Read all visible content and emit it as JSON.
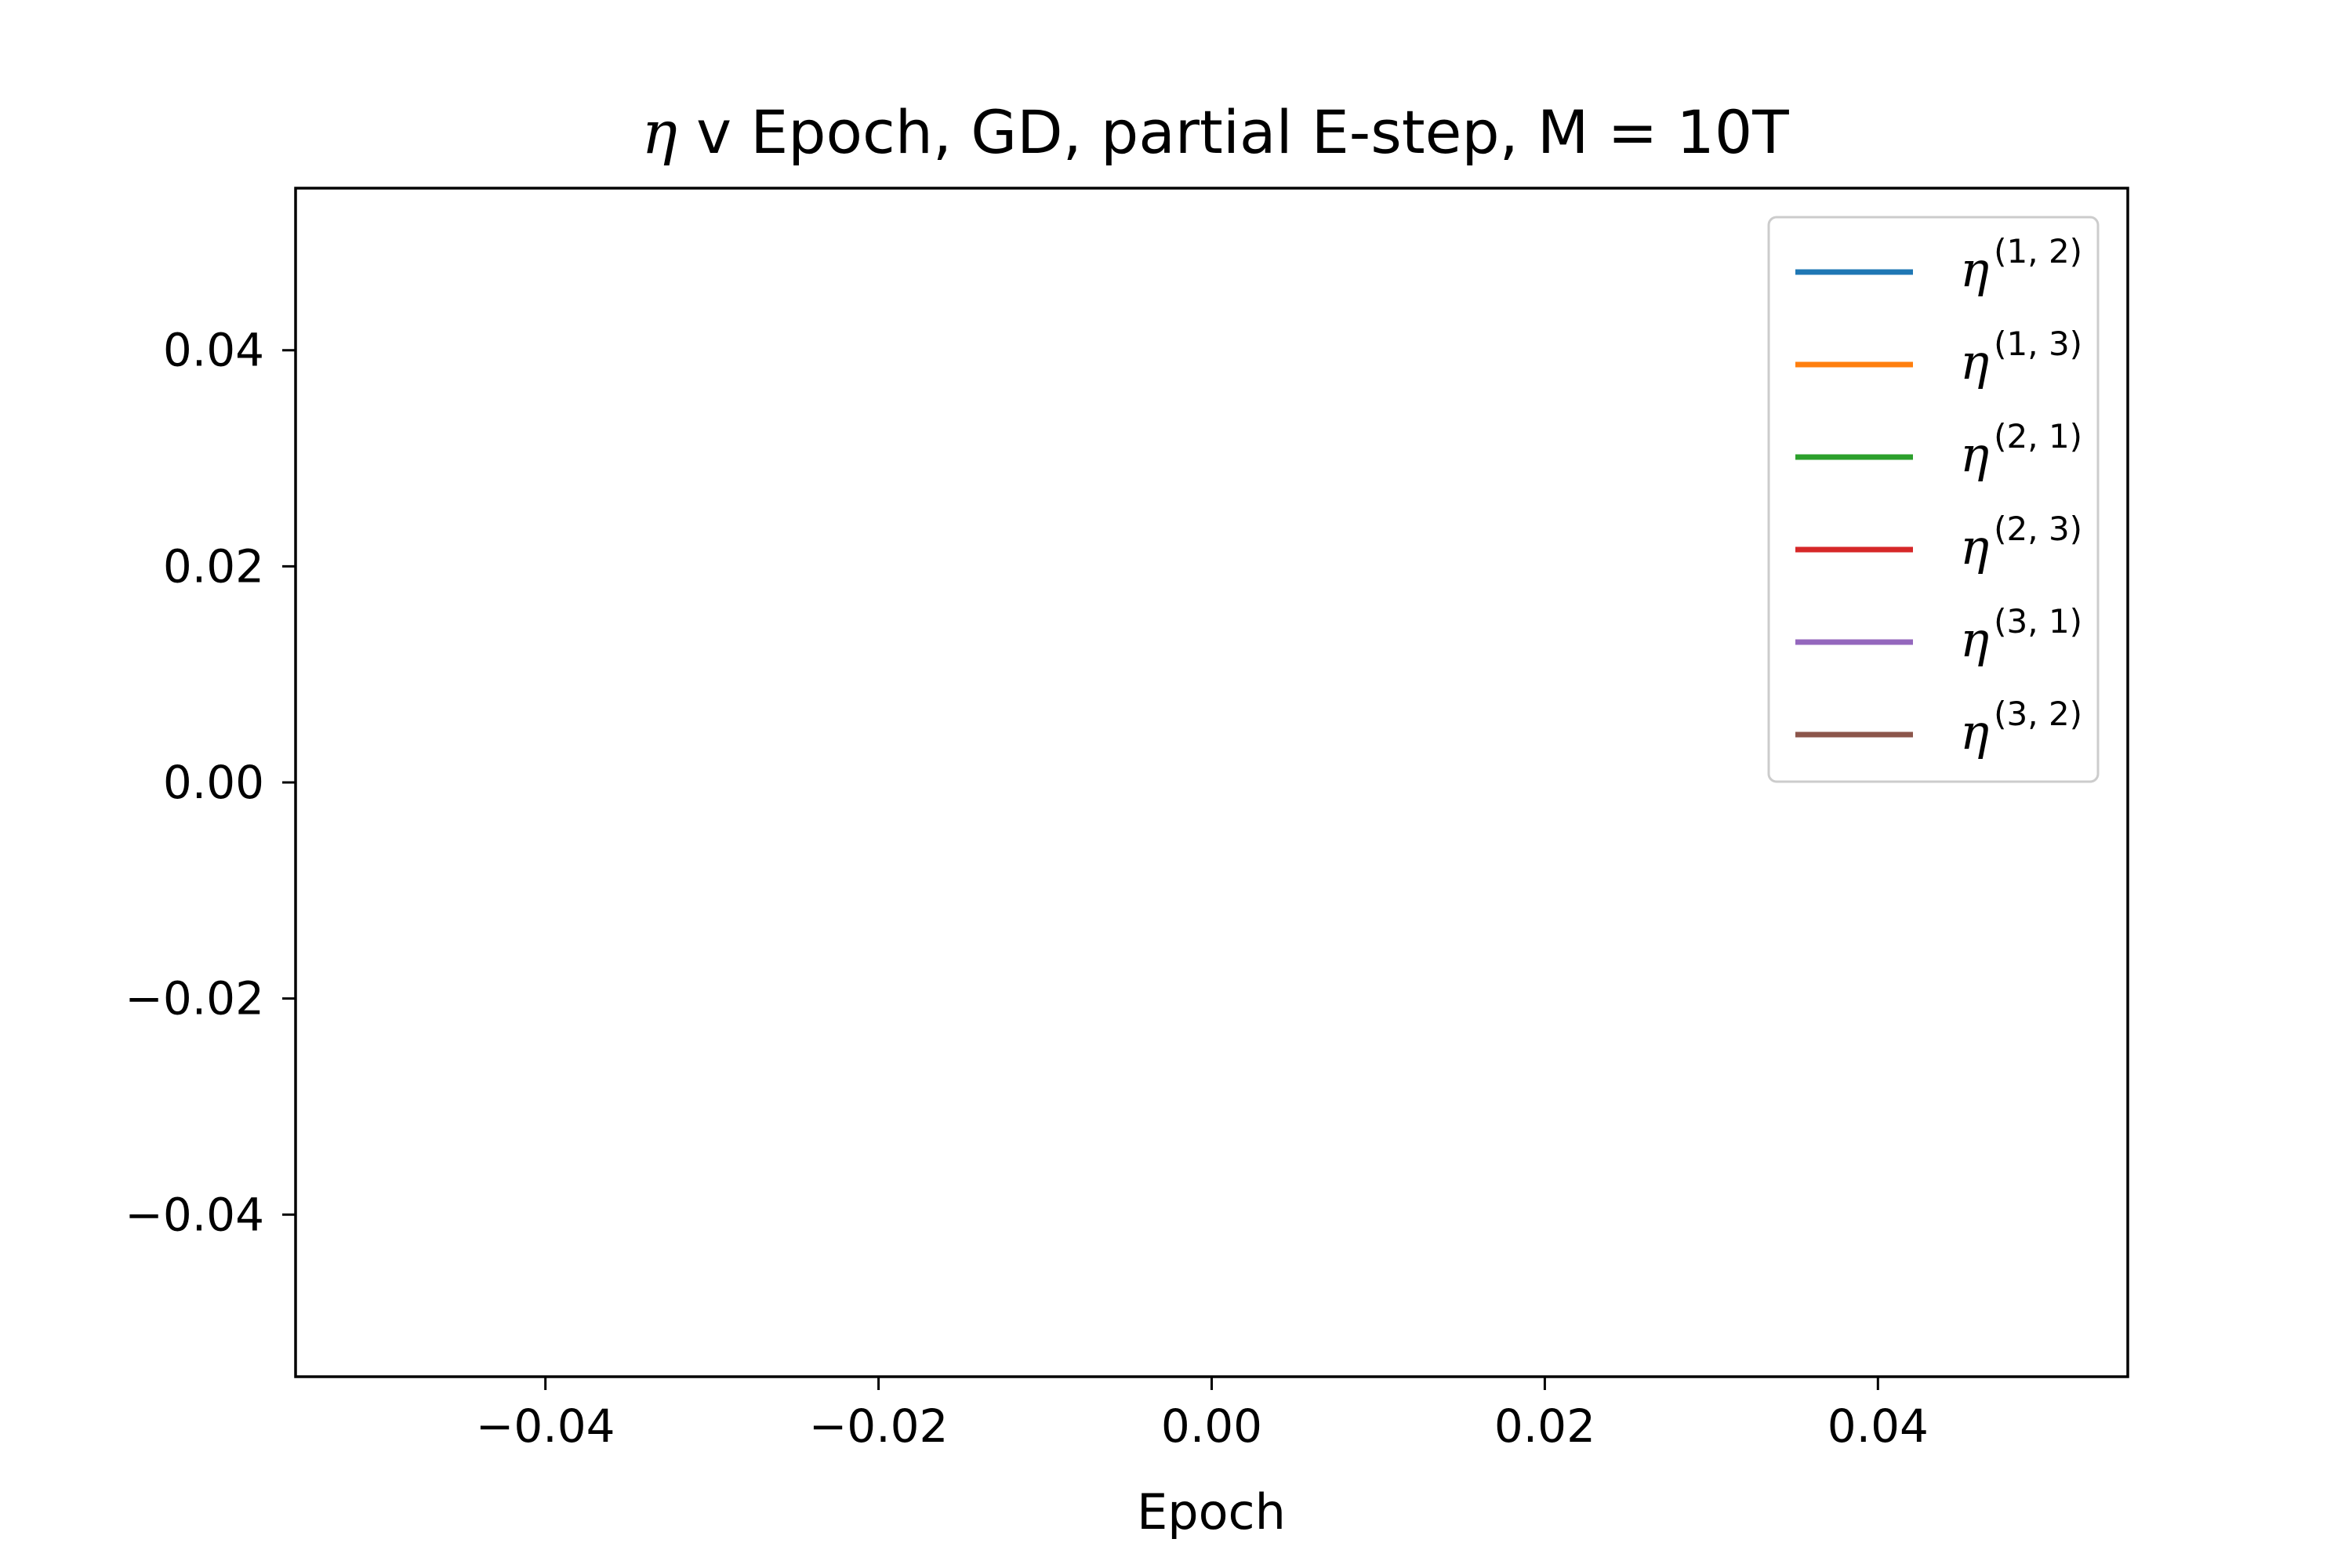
{
  "chart_data": {
    "type": "line",
    "title_symbol": "η",
    "title_rest": " v Epoch, GD, partial E-step, M = 10T",
    "xlabel": "Epoch",
    "ylabel": "",
    "xlim": [
      -0.055,
      0.055
    ],
    "ylim": [
      -0.055,
      0.055
    ],
    "xticks": [
      -0.04,
      -0.02,
      0.0,
      0.02,
      0.04
    ],
    "yticks": [
      -0.04,
      -0.02,
      0.0,
      0.02,
      0.04
    ],
    "xtick_labels": [
      "−0.04",
      "−0.02",
      "0.00",
      "0.02",
      "0.04"
    ],
    "ytick_labels": [
      "−0.04",
      "−0.02",
      "0.00",
      "0.02",
      "0.04"
    ],
    "grid": false,
    "legend_position": "top-right",
    "series": [
      {
        "symbol": "η",
        "superscript": "(1, 2)",
        "color": "#1f77b4",
        "x": [],
        "y": []
      },
      {
        "symbol": "η",
        "superscript": "(1, 3)",
        "color": "#ff7f0e",
        "x": [],
        "y": []
      },
      {
        "symbol": "η",
        "superscript": "(2, 1)",
        "color": "#2ca02c",
        "x": [],
        "y": []
      },
      {
        "symbol": "η",
        "superscript": "(2, 3)",
        "color": "#d62728",
        "x": [],
        "y": []
      },
      {
        "symbol": "η",
        "superscript": "(3, 1)",
        "color": "#9467bd",
        "x": [],
        "y": []
      },
      {
        "symbol": "η",
        "superscript": "(3, 2)",
        "color": "#8c564b",
        "x": [],
        "y": []
      }
    ]
  }
}
